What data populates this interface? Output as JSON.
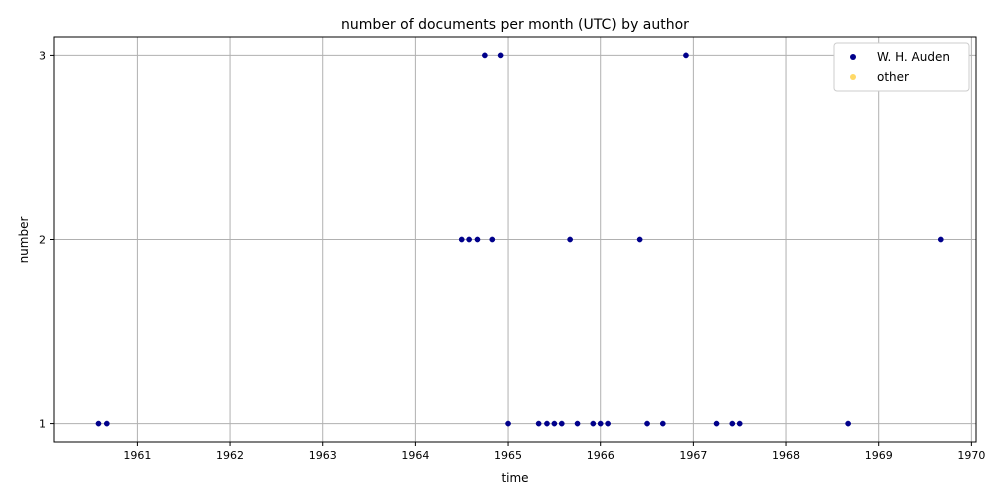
{
  "chart_data": {
    "type": "scatter",
    "title": "number of documents per month (UTC) by author",
    "xlabel": "time",
    "ylabel": "number",
    "xlim": [
      1960.1,
      1970.05
    ],
    "ylim": [
      0.9,
      3.1
    ],
    "x_ticks": [
      "1961",
      "1962",
      "1963",
      "1964",
      "1965",
      "1966",
      "1967",
      "1968",
      "1969",
      "1970"
    ],
    "y_ticks": [
      "1",
      "2",
      "3"
    ],
    "grid": true,
    "legend_position": "top-right",
    "series": [
      {
        "name": "W. H. Auden",
        "color": "#00008b",
        "points": [
          {
            "x": 1960.58,
            "y": 1
          },
          {
            "x": 1960.67,
            "y": 1
          },
          {
            "x": 1964.5,
            "y": 2
          },
          {
            "x": 1964.58,
            "y": 2
          },
          {
            "x": 1964.67,
            "y": 2
          },
          {
            "x": 1964.83,
            "y": 2
          },
          {
            "x": 1964.75,
            "y": 3
          },
          {
            "x": 1964.92,
            "y": 3
          },
          {
            "x": 1965.0,
            "y": 1
          },
          {
            "x": 1965.33,
            "y": 1
          },
          {
            "x": 1965.42,
            "y": 1
          },
          {
            "x": 1965.5,
            "y": 1
          },
          {
            "x": 1965.58,
            "y": 1
          },
          {
            "x": 1965.67,
            "y": 2
          },
          {
            "x": 1965.75,
            "y": 1
          },
          {
            "x": 1965.92,
            "y": 1
          },
          {
            "x": 1966.0,
            "y": 1
          },
          {
            "x": 1966.08,
            "y": 1
          },
          {
            "x": 1966.42,
            "y": 2
          },
          {
            "x": 1966.5,
            "y": 1
          },
          {
            "x": 1966.67,
            "y": 1
          },
          {
            "x": 1966.92,
            "y": 3
          },
          {
            "x": 1967.25,
            "y": 1
          },
          {
            "x": 1967.42,
            "y": 1
          },
          {
            "x": 1967.5,
            "y": 1
          },
          {
            "x": 1968.67,
            "y": 1
          },
          {
            "x": 1969.67,
            "y": 2
          }
        ]
      },
      {
        "name": "other",
        "color": "#ffd966",
        "points": []
      }
    ]
  }
}
